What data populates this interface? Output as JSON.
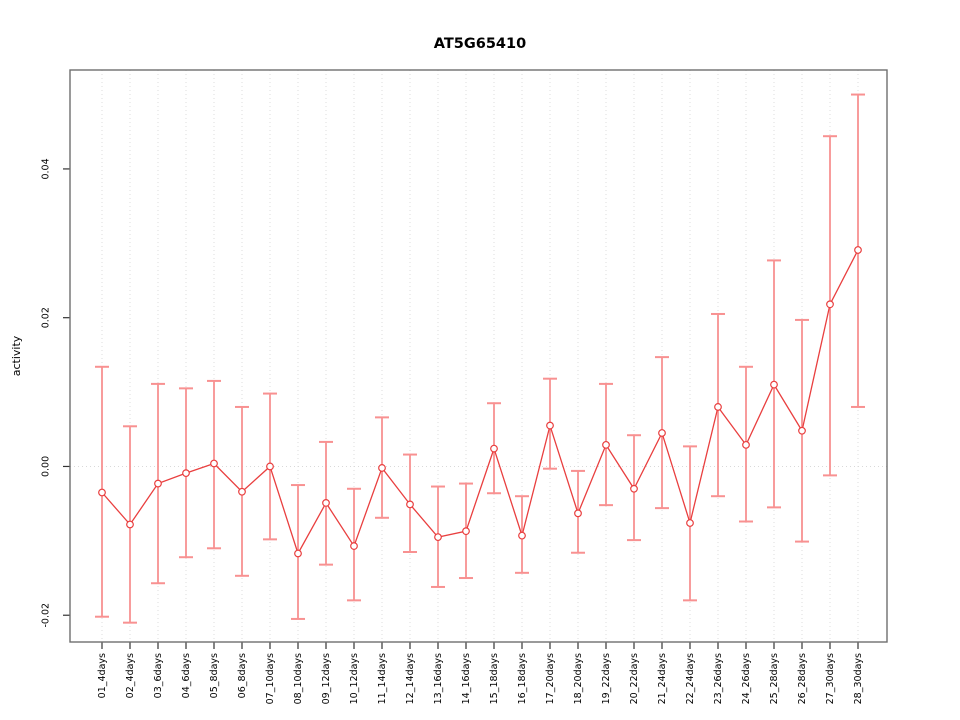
{
  "chart_data": {
    "type": "line",
    "subtype": "means-with-error-bars",
    "title": "AT5G65410",
    "xlabel": "",
    "ylabel": "activity",
    "grid": "vertical-dotted-gridlines-and-dotted-zero-line",
    "legend_position": "none",
    "ylim": [
      -0.0236,
      0.0533
    ],
    "yticks": [
      {
        "value": -0.02,
        "label": "-0.02"
      },
      {
        "value": 0.0,
        "label": "0.00"
      },
      {
        "value": 0.02,
        "label": "0.02"
      },
      {
        "value": 0.04,
        "label": "0.04"
      }
    ],
    "categories": [
      "01_4days",
      "02_4days",
      "03_6days",
      "04_6days",
      "05_8days",
      "06_8days",
      "07_10days",
      "08_10days",
      "09_12days",
      "10_12days",
      "11_14days",
      "12_14days",
      "13_16days",
      "14_16days",
      "15_18days",
      "16_18days",
      "17_20days",
      "18_20days",
      "19_22days",
      "20_22days",
      "21_24days",
      "22_24days",
      "23_26days",
      "24_26days",
      "25_28days",
      "26_28days",
      "27_30days",
      "28_30days"
    ],
    "series": [
      {
        "name": "activity",
        "marker": "open-circle",
        "values": [
          -0.0035,
          -0.0078,
          -0.0023,
          -0.0009,
          0.0004,
          -0.0034,
          0.0,
          -0.0117,
          -0.0049,
          -0.0107,
          -0.0002,
          -0.0051,
          -0.0095,
          -0.0087,
          0.0024,
          -0.0093,
          0.0055,
          -0.0063,
          0.0029,
          -0.003,
          0.0045,
          -0.0076,
          0.008,
          0.0029,
          0.011,
          0.0048,
          0.0218,
          0.0291
        ],
        "ci_low": [
          -0.0202,
          -0.021,
          -0.0157,
          -0.0122,
          -0.011,
          -0.0147,
          -0.0098,
          -0.0205,
          -0.0132,
          -0.018,
          -0.0069,
          -0.0115,
          -0.0162,
          -0.015,
          -0.0036,
          -0.0143,
          -0.0003,
          -0.0116,
          -0.0052,
          -0.0099,
          -0.0056,
          -0.018,
          -0.004,
          -0.0074,
          -0.0055,
          -0.0101,
          -0.0012,
          0.008
        ],
        "ci_high": [
          0.0134,
          0.0054,
          0.0111,
          0.0105,
          0.0115,
          0.008,
          0.0098,
          -0.0025,
          0.0033,
          -0.003,
          0.0066,
          0.0016,
          -0.0027,
          -0.0023,
          0.0085,
          -0.004,
          0.0118,
          -0.0006,
          0.0111,
          0.0042,
          0.0147,
          0.0027,
          0.0205,
          0.0134,
          0.0277,
          0.0197,
          0.0444,
          0.05
        ]
      }
    ],
    "colors": {
      "line": "#e93f3f",
      "marker_stroke": "#e93f3f",
      "error_bar": "#f89191",
      "gridline": "#dcdcdc",
      "zero_line": "#d9d9d9",
      "box": "#6e6e6e",
      "axis": "#333333",
      "text": "#000000",
      "background": "#ffffff"
    }
  }
}
